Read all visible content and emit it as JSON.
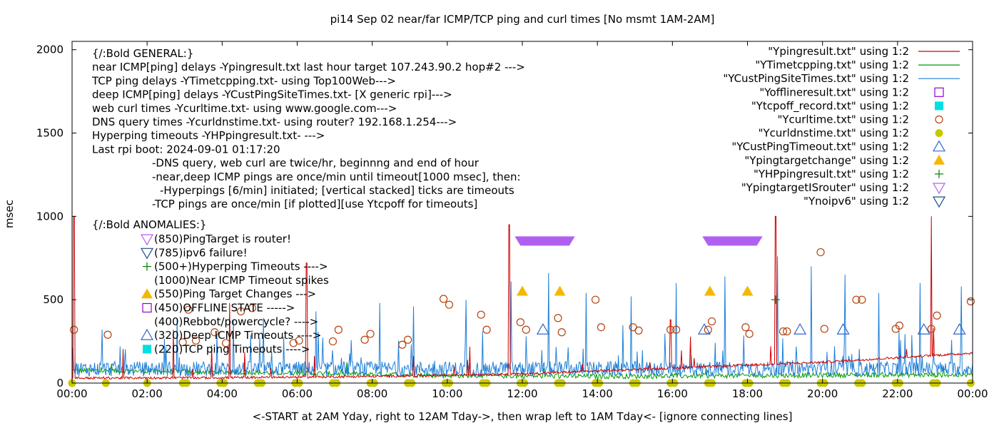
{
  "chart_data": {
    "type": "line",
    "title": "pi14 Sep 02  near/far ICMP/TCP ping and curl times [No msmt 1AM-2AM]",
    "xlabel": "<-START at 2AM Yday, right to 12AM Tday->, then wrap left to 1AM Tday<- [ignore connecting lines]",
    "ylabel": "msec",
    "xlim": [
      0,
      24
    ],
    "ylim": [
      0,
      2050
    ],
    "grid": false,
    "legend_position": "top-right",
    "x_ticks": [
      {
        "v": 0,
        "label": "00:00"
      },
      {
        "v": 2,
        "label": "02:00"
      },
      {
        "v": 4,
        "label": "04:00"
      },
      {
        "v": 6,
        "label": "06:00"
      },
      {
        "v": 8,
        "label": "08:00"
      },
      {
        "v": 10,
        "label": "10:00"
      },
      {
        "v": 12,
        "label": "12:00"
      },
      {
        "v": 14,
        "label": "14:00"
      },
      {
        "v": 16,
        "label": "16:00"
      },
      {
        "v": 18,
        "label": "18:00"
      },
      {
        "v": 20,
        "label": "20:00"
      },
      {
        "v": 22,
        "label": "22:00"
      },
      {
        "v": 24,
        "label": "00:00"
      }
    ],
    "y_ticks": [
      {
        "v": 0,
        "label": "0"
      },
      {
        "v": 500,
        "label": "500"
      },
      {
        "v": 1000,
        "label": "1000"
      },
      {
        "v": 1500,
        "label": "1500"
      },
      {
        "v": 2000,
        "label": "2000"
      }
    ],
    "legend": [
      {
        "label": "\"Ypingresult.txt\" using 1:2",
        "kind": "line",
        "color": "#cc0000"
      },
      {
        "label": "\"YTimetcpping.txt\" using 1:2",
        "kind": "line",
        "color": "#009900"
      },
      {
        "label": "\"YCustPingSiteTimes.txt\" using 1:2",
        "kind": "line",
        "color": "#1e7fd9"
      },
      {
        "label": "\"Yofflineresult.txt\" using 1:2",
        "kind": "square-open",
        "color": "#9400d3"
      },
      {
        "label": "\"Ytcpoff_record.txt\" using 1:2",
        "kind": "square-filled",
        "color": "#00e0e0"
      },
      {
        "label": "\"Ycurltime.txt\" using 1:2",
        "kind": "circle-open",
        "color": "#b5420e"
      },
      {
        "label": "\"Ycurldnstime.txt\" using 1:2",
        "kind": "circle-filled",
        "color": "#c8c800"
      },
      {
        "label": "\"YCustPingTimeout.txt\" using 1:2",
        "kind": "triangle-open",
        "color": "#3366cc"
      },
      {
        "label": "\"Ypingtargetchange\" using 1:2",
        "kind": "triangle-filled",
        "color": "#f5b800"
      },
      {
        "label": "\"YHPpingresult.txt\" using 1:2",
        "kind": "plus",
        "color": "#007f00"
      },
      {
        "label": "\"YpingtargetISrouter\" using 1:2",
        "kind": "tri-down-open",
        "color": "#b060f0"
      },
      {
        "label": "\"Ynoipv6\" using 1:2",
        "kind": "tri-down-open",
        "color": "#1a4f8a"
      }
    ],
    "annotations": [
      {
        "text": "{/:Bold GENERAL:}",
        "indent": 0
      },
      {
        "text": "near ICMP[ping] delays -Ypingresult.txt last hour target 107.243.90.2 hop#2 --->",
        "indent": 0
      },
      {
        "text": "TCP ping delays -YTimetcpping.txt- using Top100Web--->",
        "indent": 0
      },
      {
        "text": "deep ICMP[ping] delays -YCustPingSiteTimes.txt- [X generic rpi]--->",
        "indent": 0
      },
      {
        "text": "web curl times -Ycurltime.txt- using www.google.com--->",
        "indent": 0
      },
      {
        "text": "DNS query times -Ycurldnstime.txt- using router? 192.168.1.254--->",
        "indent": 0
      },
      {
        "text": "Hyperping timeouts -YHPpingresult.txt- --->",
        "indent": 0
      },
      {
        "text": "Last rpi boot: 2024-09-01 01:17:20",
        "indent": 0
      },
      {
        "text": "-DNS query, web curl are twice/hr, beginnng and end of hour",
        "indent": 1
      },
      {
        "text": "-near,deep ICMP pings are once/min until timeout[1000 msec], then:",
        "indent": 1
      },
      {
        "text": "-Hyperpings [6/min] initiated; [vertical stacked] ticks are timeouts",
        "indent": 2
      },
      {
        "text": "-TCP pings are once/min [if plotted][use Ytcpoff for timeouts]",
        "indent": 1
      }
    ],
    "anomalies_title": "{/:Bold ANOMALIES:}",
    "anomalies": [
      {
        "text": "(850)PingTarget is router!",
        "marker": "tri-down-open",
        "color": "#b060f0"
      },
      {
        "text": "(785)ipv6 failure!",
        "marker": "tri-down-open",
        "color": "#1a4f8a"
      },
      {
        "text": "(500+)Hyperping Timeouts ---->",
        "marker": "plus",
        "color": "#007f00"
      },
      {
        "text": "(1000)Near ICMP Timeout spikes",
        "marker": "none",
        "color": ""
      },
      {
        "text": "(550)Ping Target Changes --->",
        "marker": "triangle-filled",
        "color": "#f5b800"
      },
      {
        "text": "(450)OFFLINE STATE ----->",
        "marker": "square-open",
        "color": "#9400d3"
      },
      {
        "text": "(400)Rebbot/powercycle? ---->",
        "marker": "none",
        "color": ""
      },
      {
        "text": "(320)Deep ICMP Timeouts ---->",
        "marker": "triangle-open",
        "color": "#3366cc"
      },
      {
        "text": "(220)TCP ping Timeouts ---->",
        "marker": "square-filled",
        "color": "#00e0e0"
      }
    ],
    "series": [
      {
        "name": "Ycurltime.txt",
        "kind": "circle-open",
        "points": [
          [
            0.05,
            320
          ],
          [
            0.95,
            290
          ],
          [
            2.95,
            245
          ],
          [
            3.1,
            440
          ],
          [
            3.3,
            255
          ],
          [
            3.8,
            305
          ],
          [
            4.1,
            240
          ],
          [
            4.5,
            430
          ],
          [
            4.8,
            450
          ],
          [
            5.9,
            240
          ],
          [
            6.05,
            255
          ],
          [
            6.95,
            250
          ],
          [
            7.1,
            320
          ],
          [
            7.8,
            260
          ],
          [
            7.95,
            295
          ],
          [
            8.8,
            230
          ],
          [
            8.95,
            260
          ],
          [
            9.9,
            505
          ],
          [
            10.05,
            470
          ],
          [
            10.9,
            410
          ],
          [
            11.05,
            320
          ],
          [
            11.95,
            365
          ],
          [
            12.1,
            320
          ],
          [
            12.95,
            390
          ],
          [
            13.05,
            305
          ],
          [
            13.95,
            500
          ],
          [
            14.1,
            335
          ],
          [
            14.95,
            335
          ],
          [
            15.1,
            315
          ],
          [
            15.95,
            320
          ],
          [
            16.1,
            320
          ],
          [
            16.95,
            320
          ],
          [
            17.05,
            370
          ],
          [
            17.95,
            335
          ],
          [
            18.05,
            295
          ],
          [
            18.95,
            310
          ],
          [
            19.05,
            310
          ],
          [
            19.95,
            785
          ],
          [
            20.05,
            325
          ],
          [
            20.9,
            500
          ],
          [
            21.05,
            500
          ],
          [
            21.95,
            325
          ],
          [
            22.05,
            345
          ],
          [
            22.9,
            325
          ],
          [
            23.05,
            405
          ],
          [
            23.95,
            490
          ]
        ]
      },
      {
        "name": "Ycurldnstime.txt",
        "kind": "circle-filled",
        "points": [
          [
            0.0,
            0
          ],
          [
            0.9,
            0
          ],
          [
            2.0,
            0
          ],
          [
            2.95,
            0
          ],
          [
            3.05,
            0
          ],
          [
            3.95,
            0
          ],
          [
            4.05,
            0
          ],
          [
            4.95,
            0
          ],
          [
            5.05,
            0
          ],
          [
            5.95,
            0
          ],
          [
            6.05,
            0
          ],
          [
            6.95,
            0
          ],
          [
            7.05,
            0
          ],
          [
            7.95,
            0
          ],
          [
            8.05,
            0
          ],
          [
            8.95,
            0
          ],
          [
            9.05,
            0
          ],
          [
            9.95,
            0
          ],
          [
            10.05,
            0
          ],
          [
            10.95,
            0
          ],
          [
            11.05,
            0
          ],
          [
            11.95,
            0
          ],
          [
            12.05,
            0
          ],
          [
            12.95,
            0
          ],
          [
            13.05,
            0
          ],
          [
            13.95,
            0
          ],
          [
            14.05,
            0
          ],
          [
            14.95,
            0
          ],
          [
            15.05,
            0
          ],
          [
            15.95,
            0
          ],
          [
            16.05,
            0
          ],
          [
            16.95,
            0
          ],
          [
            17.05,
            0
          ],
          [
            17.95,
            0
          ],
          [
            18.05,
            0
          ],
          [
            18.95,
            0
          ],
          [
            19.05,
            0
          ],
          [
            19.95,
            0
          ],
          [
            20.05,
            0
          ],
          [
            20.95,
            0
          ],
          [
            21.05,
            0
          ],
          [
            21.95,
            0
          ],
          [
            22.05,
            0
          ],
          [
            22.95,
            0
          ],
          [
            23.05,
            0
          ],
          [
            23.95,
            0
          ]
        ]
      },
      {
        "name": "YCustPingTimeout.txt",
        "kind": "triangle-open",
        "points": [
          [
            12.55,
            320
          ],
          [
            16.85,
            320
          ],
          [
            19.4,
            320
          ],
          [
            20.55,
            320
          ],
          [
            22.7,
            320
          ],
          [
            23.65,
            320
          ]
        ]
      },
      {
        "name": "Ypingtargetchange",
        "kind": "triangle-filled",
        "points": [
          [
            12.0,
            550
          ],
          [
            13.0,
            550
          ],
          [
            17.0,
            550
          ],
          [
            18.0,
            550
          ]
        ]
      },
      {
        "name": "YpingtargetISrouter",
        "kind": "tri-down-bar",
        "segments": [
          [
            11.95,
            13.25,
            850
          ],
          [
            16.95,
            18.25,
            850
          ]
        ]
      },
      {
        "name": "YHPpingresult.txt",
        "kind": "plus",
        "points": [
          [
            18.75,
            500
          ]
        ]
      },
      {
        "name": "Ypingresult.txt",
        "kind": "line",
        "spikes": [
          [
            0.05,
            1000
          ],
          [
            11.65,
            950
          ],
          [
            18.75,
            1000
          ],
          [
            22.9,
            1000
          ],
          [
            6.25,
            720
          ],
          [
            4.2,
            480
          ],
          [
            2.7,
            320
          ],
          [
            15.95,
            380
          ]
        ],
        "trend": [
          [
            0,
            30
          ],
          [
            4,
            32
          ],
          [
            8,
            40
          ],
          [
            12,
            55
          ],
          [
            16,
            90
          ],
          [
            20,
            125
          ],
          [
            24,
            180
          ]
        ]
      },
      {
        "name": "YTimetcpping.txt",
        "kind": "line",
        "trend": [
          [
            0,
            75
          ],
          [
            2,
            72
          ],
          [
            6,
            60
          ],
          [
            10,
            45
          ],
          [
            14,
            40
          ],
          [
            18,
            45
          ],
          [
            22,
            50
          ],
          [
            24,
            48
          ]
        ]
      },
      {
        "name": "YCustPingSiteTimes.txt",
        "kind": "line",
        "peaks": [
          [
            0.8,
            320
          ],
          [
            2.8,
            390
          ],
          [
            4.3,
            380
          ],
          [
            5.1,
            390
          ],
          [
            6.5,
            430
          ],
          [
            8.2,
            480
          ],
          [
            9.1,
            460
          ],
          [
            10.5,
            500
          ],
          [
            11.7,
            610
          ],
          [
            12.7,
            660
          ],
          [
            13.7,
            540
          ],
          [
            14.9,
            520
          ],
          [
            16.1,
            600
          ],
          [
            17.4,
            640
          ],
          [
            18.8,
            760
          ],
          [
            19.7,
            700
          ],
          [
            20.6,
            650
          ],
          [
            21.5,
            540
          ],
          [
            22.6,
            600
          ],
          [
            23.7,
            580
          ]
        ]
      }
    ]
  }
}
